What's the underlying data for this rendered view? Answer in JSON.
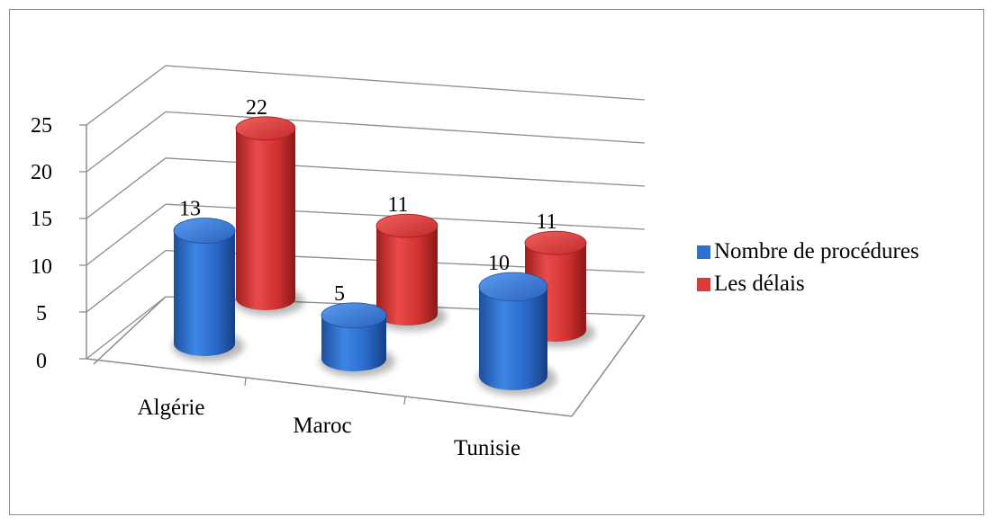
{
  "chart_data": {
    "type": "bar",
    "style": "3d-cylinder",
    "categories": [
      "Algérie",
      "Maroc",
      "Tunisie"
    ],
    "series": [
      {
        "name": "Nombre de procédures",
        "values": [
          13,
          5,
          10
        ],
        "color": "#2e6fd0"
      },
      {
        "name": "Les délais",
        "values": [
          22,
          11,
          11
        ],
        "color": "#d83b3b"
      }
    ],
    "y_ticks": [
      "0",
      "5",
      "10",
      "15",
      "20",
      "25"
    ],
    "ylim": [
      0,
      25
    ],
    "grid": true,
    "legend_position": "right"
  }
}
